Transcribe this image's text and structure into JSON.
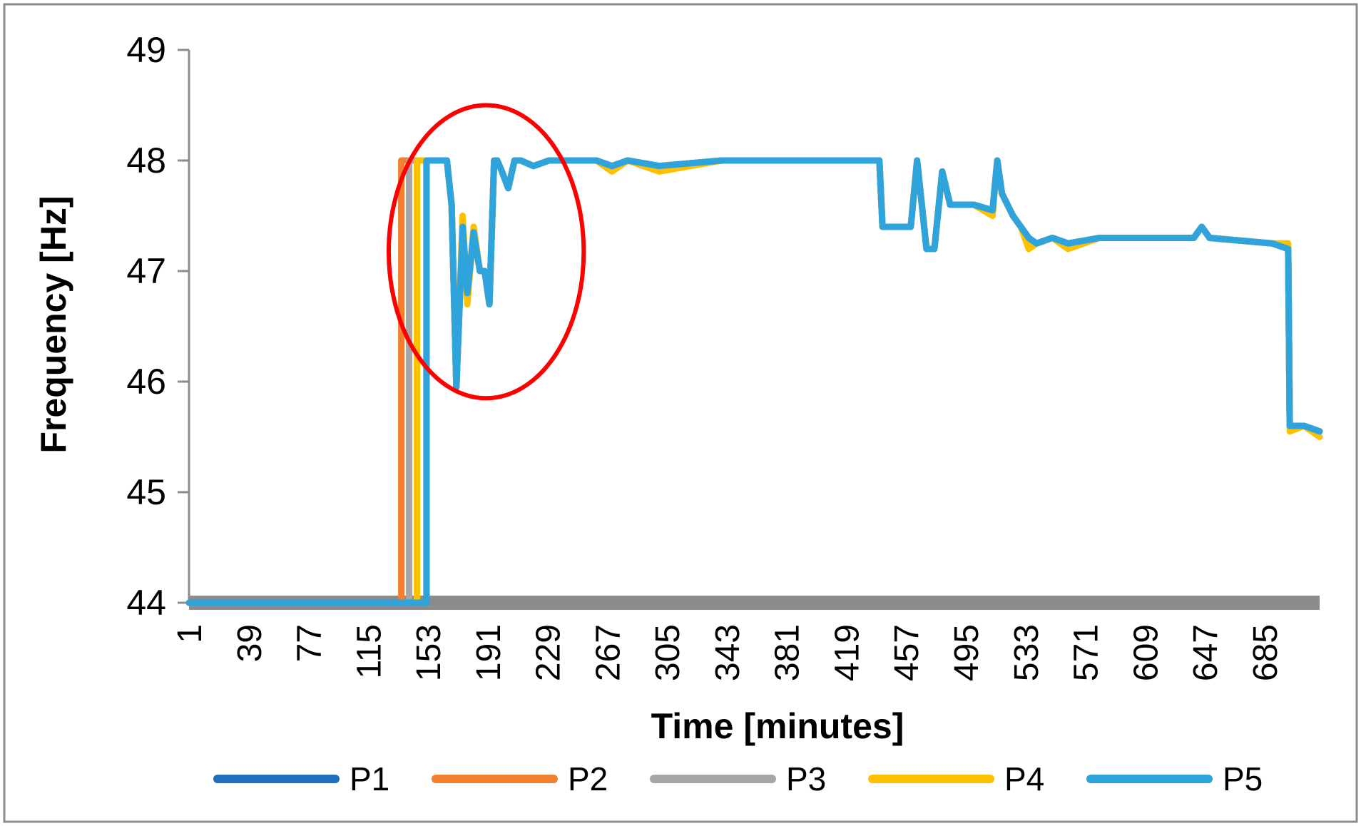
{
  "chart_data": {
    "type": "line",
    "xlabel": "Time [minutes]",
    "ylabel": "Frequency [Hz]",
    "ylim": [
      44,
      49
    ],
    "xlim": [
      1,
      720
    ],
    "y_ticks": [
      44,
      45,
      46,
      47,
      48,
      49
    ],
    "x_tick_labels": [
      1,
      39,
      77,
      115,
      153,
      191,
      229,
      267,
      305,
      343,
      381,
      419,
      457,
      495,
      533,
      571,
      609,
      647,
      685
    ],
    "grid": false,
    "legend": "bottom",
    "series": [
      {
        "name": "P1",
        "color": "#1F6FBF",
        "x": [
          1,
          152,
          152,
          165,
          168,
          171,
          175,
          178,
          182,
          186,
          189,
          192,
          195,
          197,
          200,
          204,
          208,
          212,
          220,
          230,
          260,
          270,
          280,
          300,
          340,
          440,
          442,
          460,
          464,
          470,
          475,
          480,
          485,
          500,
          512,
          515,
          518,
          525,
          530,
          535,
          540,
          550,
          560,
          580,
          640,
          645,
          650,
          690,
          700,
          701,
          710,
          720
        ],
        "y": [
          44,
          44,
          48,
          48,
          47.6,
          45.95,
          47.4,
          46.8,
          47.35,
          47.0,
          47.0,
          46.7,
          48.0,
          48.0,
          47.9,
          47.75,
          48.0,
          48.0,
          47.95,
          48.0,
          48.0,
          47.95,
          48.0,
          47.95,
          48.0,
          48.0,
          47.4,
          47.4,
          48.0,
          47.2,
          47.2,
          47.9,
          47.6,
          47.6,
          47.55,
          48.0,
          47.7,
          47.5,
          47.4,
          47.3,
          47.25,
          47.3,
          47.25,
          47.3,
          47.3,
          47.4,
          47.3,
          47.25,
          47.2,
          45.6,
          45.6,
          45.55
        ]
      },
      {
        "name": "P2",
        "color": "#F28030",
        "x": [
          1,
          136,
          136,
          165,
          168,
          171,
          175,
          178,
          182,
          186,
          189,
          192,
          195,
          197,
          200,
          204,
          208,
          212,
          220,
          230,
          260,
          270,
          280,
          300,
          340,
          440,
          442,
          460,
          464,
          470,
          475,
          480,
          485,
          500,
          512,
          515,
          518,
          525,
          530,
          535,
          540,
          550,
          560,
          580,
          640,
          645,
          650,
          690,
          700,
          701,
          710,
          720
        ],
        "y": [
          44,
          44,
          48,
          48,
          47.6,
          45.95,
          47.45,
          46.75,
          47.35,
          47.0,
          47.0,
          46.7,
          48.0,
          48.0,
          47.9,
          47.75,
          48.0,
          48.0,
          47.95,
          48.0,
          48.0,
          47.95,
          48.0,
          47.95,
          48.0,
          48.0,
          47.4,
          47.4,
          48.0,
          47.2,
          47.2,
          47.9,
          47.6,
          47.6,
          47.55,
          48.0,
          47.7,
          47.5,
          47.4,
          47.25,
          47.25,
          47.3,
          47.25,
          47.3,
          47.3,
          47.4,
          47.3,
          47.25,
          47.2,
          45.6,
          45.6,
          45.55
        ]
      },
      {
        "name": "P3",
        "color": "#A6A6A6",
        "x": [
          1,
          141,
          141,
          165,
          168,
          171,
          175,
          178,
          182,
          186,
          189,
          192,
          195,
          197,
          200,
          204,
          208,
          212,
          220,
          230,
          260,
          270,
          280,
          300,
          340,
          440,
          442,
          460,
          464,
          470,
          475,
          480,
          485,
          500,
          512,
          515,
          518,
          525,
          530,
          535,
          540,
          550,
          560,
          580,
          640,
          645,
          650,
          690,
          700,
          701,
          710,
          720
        ],
        "y": [
          44,
          44,
          48,
          48,
          47.6,
          45.95,
          47.45,
          46.75,
          47.35,
          47.0,
          47.0,
          46.7,
          48.0,
          48.0,
          47.9,
          47.75,
          48.0,
          48.0,
          47.95,
          48.0,
          48.0,
          47.95,
          48.0,
          47.95,
          48.0,
          48.0,
          47.4,
          47.4,
          48.0,
          47.2,
          47.2,
          47.9,
          47.6,
          47.6,
          47.55,
          48.0,
          47.7,
          47.5,
          47.4,
          47.25,
          47.25,
          47.3,
          47.25,
          47.3,
          47.3,
          47.4,
          47.3,
          47.25,
          47.2,
          45.6,
          45.6,
          45.55
        ]
      },
      {
        "name": "P4",
        "color": "#FFC000",
        "x": [
          1,
          146,
          146,
          165,
          168,
          171,
          175,
          178,
          182,
          186,
          189,
          192,
          195,
          197,
          200,
          204,
          208,
          212,
          220,
          230,
          260,
          270,
          280,
          300,
          340,
          440,
          442,
          460,
          464,
          470,
          475,
          480,
          485,
          500,
          512,
          515,
          518,
          525,
          530,
          535,
          540,
          550,
          560,
          580,
          640,
          645,
          650,
          690,
          700,
          701,
          710,
          720
        ],
        "y": [
          44,
          44,
          48,
          48,
          47.6,
          45.95,
          47.5,
          46.7,
          47.4,
          47.0,
          47.0,
          46.7,
          48.0,
          48.0,
          47.9,
          47.75,
          48.0,
          48.0,
          47.95,
          48.0,
          48.0,
          47.9,
          48.0,
          47.9,
          48.0,
          48.0,
          47.4,
          47.4,
          48.0,
          47.2,
          47.2,
          47.9,
          47.6,
          47.6,
          47.5,
          48.0,
          47.7,
          47.5,
          47.4,
          47.2,
          47.25,
          47.3,
          47.2,
          47.3,
          47.3,
          47.4,
          47.3,
          47.25,
          47.25,
          45.55,
          45.6,
          45.5
        ]
      },
      {
        "name": "P5",
        "color": "#2FA3DC",
        "x": [
          1,
          152,
          152,
          165,
          168,
          171,
          175,
          178,
          182,
          186,
          189,
          192,
          195,
          197,
          200,
          204,
          208,
          212,
          220,
          230,
          260,
          270,
          280,
          300,
          340,
          440,
          442,
          460,
          464,
          470,
          475,
          480,
          485,
          500,
          512,
          515,
          518,
          525,
          530,
          535,
          540,
          550,
          560,
          580,
          640,
          645,
          650,
          690,
          700,
          701,
          710,
          720
        ],
        "y": [
          44,
          44,
          48,
          48,
          47.6,
          45.95,
          47.4,
          46.8,
          47.35,
          47.0,
          47.0,
          46.7,
          48.0,
          48.0,
          47.9,
          47.75,
          48.0,
          48.0,
          47.95,
          48.0,
          48.0,
          47.95,
          48.0,
          47.95,
          48.0,
          48.0,
          47.4,
          47.4,
          48.0,
          47.2,
          47.2,
          47.9,
          47.6,
          47.6,
          47.55,
          48.0,
          47.7,
          47.5,
          47.4,
          47.3,
          47.25,
          47.3,
          47.25,
          47.3,
          47.3,
          47.4,
          47.3,
          47.25,
          47.2,
          45.6,
          45.6,
          45.55
        ]
      }
    ],
    "annotations": [
      {
        "type": "ellipse",
        "color": "#FF0000",
        "x_range": [
          128,
          252
        ],
        "y_range": [
          45.85,
          48.5
        ]
      }
    ]
  }
}
